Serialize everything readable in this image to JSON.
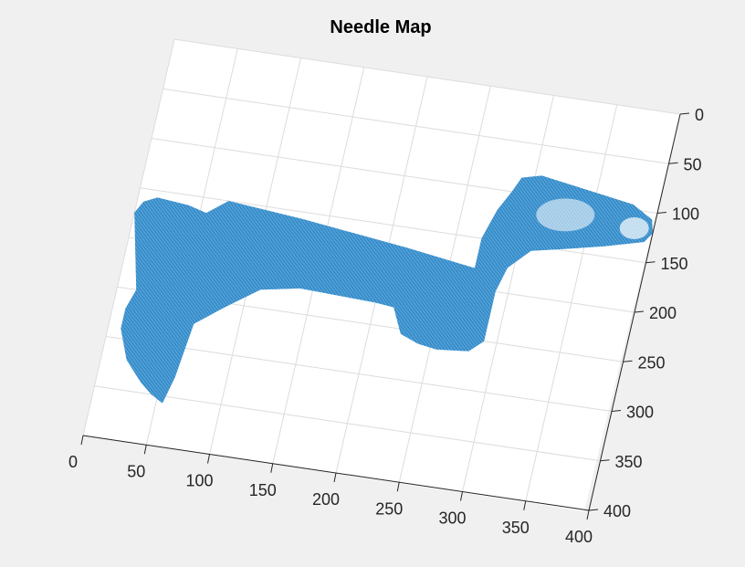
{
  "chart_data": {
    "type": "surface-quiver",
    "title": "Needle Map",
    "xlabel": "",
    "ylabel": "",
    "xlim": [
      0,
      400
    ],
    "ylim": [
      0,
      400
    ],
    "y_reversed": true,
    "xticks": [
      "0",
      "50",
      "100",
      "150",
      "200",
      "250",
      "300",
      "350",
      "400"
    ],
    "yticks": [
      "0",
      "50",
      "100",
      "150",
      "200",
      "250",
      "300",
      "350",
      "400"
    ],
    "grid": true,
    "needle_color": "#0072BD",
    "region_outline": [
      [
        70,
        150
      ],
      [
        130,
        157
      ],
      [
        215,
        170
      ],
      [
        270,
        180
      ],
      [
        270,
        150
      ],
      [
        277,
        120
      ],
      [
        285,
        100
      ],
      [
        290,
        85
      ],
      [
        305,
        80
      ],
      [
        330,
        85
      ],
      [
        355,
        90
      ],
      [
        380,
        95
      ],
      [
        397,
        107
      ],
      [
        400,
        120
      ],
      [
        395,
        130
      ],
      [
        380,
        135
      ],
      [
        365,
        140
      ],
      [
        340,
        147
      ],
      [
        310,
        155
      ],
      [
        295,
        175
      ],
      [
        290,
        200
      ],
      [
        290,
        250
      ],
      [
        280,
        262
      ],
      [
        255,
        265
      ],
      [
        240,
        262
      ],
      [
        225,
        255
      ],
      [
        215,
        230
      ],
      [
        200,
        228
      ],
      [
        140,
        225
      ],
      [
        110,
        232
      ],
      [
        85,
        255
      ],
      [
        65,
        275
      ],
      [
        60,
        330
      ],
      [
        55,
        357
      ],
      [
        45,
        350
      ],
      [
        35,
        340
      ],
      [
        20,
        320
      ],
      [
        10,
        290
      ],
      [
        10,
        270
      ],
      [
        15,
        250
      ],
      [
        10,
        225
      ],
      [
        5,
        200
      ],
      [
        0,
        175
      ],
      [
        5,
        163
      ],
      [
        15,
        157
      ],
      [
        40,
        160
      ],
      [
        55,
        165
      ]
    ]
  }
}
